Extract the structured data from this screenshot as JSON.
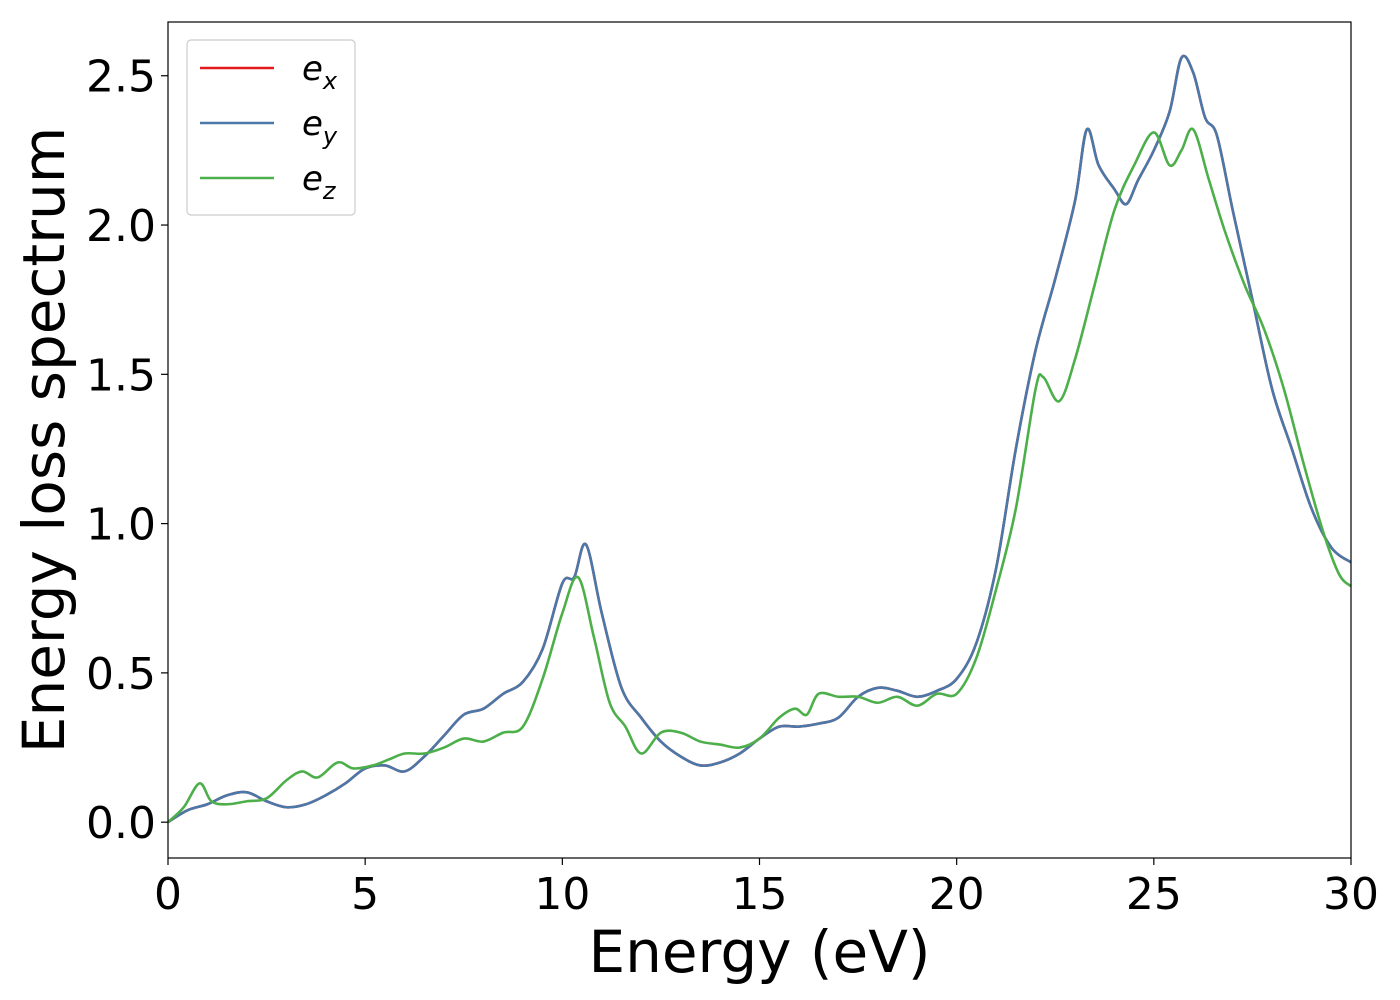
{
  "chart_data": {
    "type": "line",
    "title": "",
    "xlabel": "Energy (eV)",
    "ylabel": "Energy loss spectrum",
    "xlim": [
      0,
      30
    ],
    "ylim": [
      -0.12,
      2.68
    ],
    "xticks": [
      0,
      5,
      10,
      15,
      20,
      25,
      30
    ],
    "xtick_labels": [
      "0",
      "5",
      "10",
      "15",
      "20",
      "25",
      "30"
    ],
    "yticks": [
      0.0,
      0.5,
      1.0,
      1.5,
      2.0,
      2.5
    ],
    "ytick_labels": [
      "0.0",
      "0.5",
      "1.0",
      "1.5",
      "2.0",
      "2.5"
    ],
    "grid": false,
    "legend_position": "top-left",
    "series": [
      {
        "name": "e_x",
        "legend_base": "e",
        "legend_sub": "x",
        "color": "#e41a1c",
        "x": [
          0,
          0.5,
          1,
          1.5,
          2,
          2.5,
          3,
          3.5,
          4,
          4.5,
          5,
          5.5,
          6,
          6.5,
          7,
          7.5,
          8,
          8.5,
          9,
          9.5,
          10,
          10.3,
          10.6,
          11,
          11.5,
          12,
          12.5,
          13,
          13.5,
          14,
          14.5,
          15,
          15.5,
          16,
          16.5,
          17,
          17.5,
          18,
          18.5,
          19,
          19.5,
          20,
          20.5,
          21,
          21.5,
          22,
          22.5,
          23,
          23.3,
          23.6,
          24,
          24.3,
          24.6,
          25,
          25.4,
          25.7,
          26,
          26.3,
          26.6,
          27,
          27.5,
          28,
          28.5,
          29,
          29.5,
          30
        ],
        "y": [
          0.0,
          0.04,
          0.06,
          0.09,
          0.1,
          0.07,
          0.05,
          0.06,
          0.09,
          0.13,
          0.18,
          0.19,
          0.17,
          0.22,
          0.29,
          0.36,
          0.38,
          0.43,
          0.47,
          0.58,
          0.8,
          0.82,
          0.93,
          0.7,
          0.45,
          0.35,
          0.27,
          0.22,
          0.19,
          0.2,
          0.23,
          0.28,
          0.32,
          0.32,
          0.33,
          0.35,
          0.42,
          0.45,
          0.44,
          0.42,
          0.44,
          0.48,
          0.6,
          0.85,
          1.25,
          1.58,
          1.82,
          2.08,
          2.32,
          2.2,
          2.12,
          2.07,
          2.15,
          2.25,
          2.38,
          2.56,
          2.51,
          2.36,
          2.3,
          2.05,
          1.75,
          1.45,
          1.25,
          1.05,
          0.92,
          0.87
        ]
      },
      {
        "name": "e_y",
        "legend_base": "e",
        "legend_sub": "y",
        "color": "#4a78a8",
        "x": [
          0,
          0.5,
          1,
          1.5,
          2,
          2.5,
          3,
          3.5,
          4,
          4.5,
          5,
          5.5,
          6,
          6.5,
          7,
          7.5,
          8,
          8.5,
          9,
          9.5,
          10,
          10.3,
          10.6,
          11,
          11.5,
          12,
          12.5,
          13,
          13.5,
          14,
          14.5,
          15,
          15.5,
          16,
          16.5,
          17,
          17.5,
          18,
          18.5,
          19,
          19.5,
          20,
          20.5,
          21,
          21.5,
          22,
          22.5,
          23,
          23.3,
          23.6,
          24,
          24.3,
          24.6,
          25,
          25.4,
          25.7,
          26,
          26.3,
          26.6,
          27,
          27.5,
          28,
          28.5,
          29,
          29.5,
          30
        ],
        "y": [
          0.0,
          0.04,
          0.06,
          0.09,
          0.1,
          0.07,
          0.05,
          0.06,
          0.09,
          0.13,
          0.18,
          0.19,
          0.17,
          0.22,
          0.29,
          0.36,
          0.38,
          0.43,
          0.47,
          0.58,
          0.8,
          0.82,
          0.93,
          0.7,
          0.45,
          0.35,
          0.27,
          0.22,
          0.19,
          0.2,
          0.23,
          0.28,
          0.32,
          0.32,
          0.33,
          0.35,
          0.42,
          0.45,
          0.44,
          0.42,
          0.44,
          0.48,
          0.6,
          0.85,
          1.25,
          1.58,
          1.82,
          2.08,
          2.32,
          2.2,
          2.12,
          2.07,
          2.15,
          2.25,
          2.38,
          2.56,
          2.51,
          2.36,
          2.3,
          2.05,
          1.75,
          1.45,
          1.25,
          1.05,
          0.92,
          0.87
        ]
      },
      {
        "name": "e_z",
        "legend_base": "e",
        "legend_sub": "z",
        "color": "#4daf4a",
        "x": [
          0,
          0.4,
          0.8,
          1.1,
          1.5,
          2,
          2.5,
          3,
          3.4,
          3.8,
          4.3,
          4.7,
          5.2,
          5.6,
          6,
          6.5,
          7,
          7.5,
          8,
          8.5,
          9,
          9.5,
          10,
          10.4,
          10.8,
          11.2,
          11.6,
          12,
          12.5,
          13,
          13.5,
          14,
          14.5,
          15,
          15.5,
          15.9,
          16.2,
          16.5,
          17,
          17.5,
          18,
          18.5,
          19,
          19.5,
          20,
          20.5,
          21,
          21.5,
          22,
          22.2,
          22.6,
          23,
          23.5,
          24,
          24.5,
          25,
          25.4,
          25.7,
          26,
          26.4,
          26.8,
          27.3,
          27.8,
          28.3,
          28.8,
          29.3,
          29.7,
          30
        ],
        "y": [
          0.0,
          0.05,
          0.13,
          0.07,
          0.06,
          0.07,
          0.08,
          0.14,
          0.17,
          0.15,
          0.2,
          0.18,
          0.19,
          0.21,
          0.23,
          0.23,
          0.25,
          0.28,
          0.27,
          0.3,
          0.32,
          0.48,
          0.7,
          0.82,
          0.62,
          0.4,
          0.32,
          0.23,
          0.3,
          0.3,
          0.27,
          0.26,
          0.25,
          0.28,
          0.35,
          0.38,
          0.36,
          0.43,
          0.42,
          0.42,
          0.4,
          0.42,
          0.39,
          0.43,
          0.43,
          0.55,
          0.78,
          1.05,
          1.45,
          1.49,
          1.41,
          1.55,
          1.8,
          2.05,
          2.2,
          2.31,
          2.2,
          2.25,
          2.32,
          2.15,
          1.98,
          1.8,
          1.65,
          1.45,
          1.2,
          0.97,
          0.83,
          0.79
        ]
      }
    ]
  }
}
